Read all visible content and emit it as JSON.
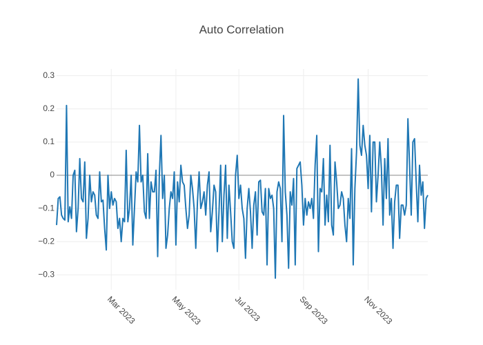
{
  "chart_data": {
    "type": "line",
    "title": "Auto Correlation",
    "color": "#1f77b4",
    "grid": true,
    "zeroline": true,
    "ylim": [
      -0.345,
      0.32
    ],
    "yticks": [
      {
        "value": -0.3,
        "label": "−0.3"
      },
      {
        "value": -0.2,
        "label": "−0.2"
      },
      {
        "value": -0.1,
        "label": "−0.1"
      },
      0,
      0.1,
      0.2,
      0.3
    ],
    "categories": [
      null,
      null,
      null,
      null,
      null,
      null,
      null,
      null,
      null,
      null,
      null,
      null,
      null,
      null,
      null,
      null,
      null,
      null,
      null,
      null,
      null,
      null,
      null,
      null,
      null,
      null,
      null,
      null,
      null,
      null,
      null,
      null,
      null,
      "Mar 2023",
      null,
      null,
      null,
      null,
      null,
      null,
      null,
      null,
      null,
      null,
      null,
      null,
      null,
      null,
      null,
      null,
      null,
      null,
      null,
      null,
      null,
      null,
      null,
      null,
      null,
      null,
      null,
      null,
      null,
      null,
      null,
      null,
      null,
      null,
      null,
      null,
      null,
      null,
      "May 2023",
      null,
      null,
      null,
      null,
      null,
      null,
      null,
      null,
      null,
      null,
      null,
      null,
      null,
      null,
      null,
      null,
      null,
      null,
      null,
      null,
      null,
      null,
      null,
      null,
      null,
      null,
      null,
      null,
      null,
      null,
      null,
      null,
      null,
      null,
      null,
      null,
      null,
      "Jul 2023",
      null,
      null,
      null,
      null,
      null,
      null,
      null,
      null,
      null,
      null,
      null,
      null,
      null,
      null,
      null,
      null,
      null,
      null,
      null,
      null,
      null,
      null,
      null,
      null,
      null,
      null,
      null,
      null,
      null,
      null,
      null,
      null,
      null,
      null,
      null,
      null,
      null,
      null,
      "Sep 2023",
      null,
      null,
      null,
      null,
      null,
      null,
      null,
      null,
      null,
      null,
      null,
      null,
      null,
      null,
      null,
      null,
      null,
      null,
      null,
      null,
      null,
      null,
      null,
      null,
      null,
      null,
      null,
      null,
      null,
      null,
      null,
      null,
      null,
      null,
      null,
      null,
      null,
      null,
      "Nov 2023",
      null,
      null,
      null,
      null,
      null,
      null,
      null,
      null,
      null,
      null,
      null,
      null,
      null,
      null,
      null,
      null,
      null,
      null,
      null,
      null,
      null,
      null,
      null,
      null,
      null,
      null,
      null,
      null,
      null,
      null,
      null,
      null,
      null,
      null,
      null,
      null
    ],
    "values": [
      -0.15,
      -0.07,
      -0.065,
      -0.12,
      -0.13,
      -0.135,
      0.21,
      -0.14,
      -0.095,
      -0.13,
      0.0,
      0.015,
      -0.17,
      -0.1,
      0.05,
      -0.07,
      -0.08,
      0.04,
      -0.19,
      -0.13,
      0.0,
      -0.08,
      -0.05,
      -0.06,
      -0.12,
      -0.13,
      0.01,
      -0.08,
      -0.075,
      -0.16,
      -0.225,
      0.0,
      -0.1,
      -0.05,
      -0.09,
      -0.07,
      -0.08,
      -0.16,
      -0.13,
      -0.2,
      -0.13,
      -0.14,
      0.075,
      -0.14,
      -0.1,
      0.0,
      -0.21,
      -0.1,
      0.01,
      -0.02,
      0.15,
      -0.02,
      0.0,
      -0.11,
      -0.13,
      0.065,
      -0.13,
      -0.02,
      -0.05,
      -0.05,
      0.015,
      -0.245,
      0.0,
      0.12,
      -0.07,
      0.0,
      -0.22,
      -0.18,
      -0.1,
      -0.05,
      -0.07,
      0.01,
      -0.21,
      -0.02,
      -0.08,
      0.03,
      -0.02,
      -0.03,
      -0.1,
      -0.16,
      -0.12,
      0.0,
      -0.04,
      -0.1,
      -0.22,
      -0.08,
      0.01,
      -0.1,
      -0.08,
      -0.05,
      -0.12,
      -0.03,
      0.01,
      -0.17,
      -0.11,
      -0.03,
      -0.05,
      -0.23,
      -0.11,
      0.03,
      -0.2,
      -0.06,
      0.03,
      -0.19,
      -0.03,
      -0.11,
      -0.2,
      -0.22,
      0.0,
      0.06,
      -0.07,
      -0.03,
      -0.1,
      -0.13,
      -0.25,
      -0.1,
      -0.04,
      -0.11,
      -0.22,
      -0.09,
      -0.05,
      -0.18,
      -0.02,
      -0.015,
      -0.11,
      -0.12,
      -0.04,
      -0.27,
      -0.04,
      -0.07,
      -0.06,
      -0.1,
      -0.31,
      -0.05,
      -0.02,
      -0.04,
      -0.2,
      0.18,
      -0.05,
      -0.12,
      -0.28,
      -0.05,
      -0.09,
      -0.01,
      -0.27,
      0.02,
      0.03,
      0.04,
      -0.03,
      -0.15,
      -0.07,
      -0.12,
      -0.08,
      -0.1,
      -0.07,
      -0.13,
      0.03,
      0.12,
      -0.23,
      -0.04,
      -0.05,
      0.05,
      -0.15,
      -0.06,
      -0.14,
      0.09,
      -0.15,
      -0.18,
      0.04,
      -0.02,
      -0.1,
      -0.09,
      -0.05,
      -0.07,
      -0.15,
      -0.2,
      -0.07,
      -0.13,
      0.08,
      -0.27,
      -0.04,
      0.07,
      0.29,
      0.09,
      0.06,
      0.15,
      0.09,
      0.06,
      -0.04,
      0.12,
      -0.11,
      0.1,
      0.1,
      -0.08,
      0.0,
      0.1,
      0.02,
      -0.15,
      0.05,
      -0.07,
      0.11,
      -0.12,
      -0.07,
      -0.22,
      -0.08,
      -0.03,
      -0.03,
      -0.19,
      -0.09,
      -0.09,
      -0.12,
      -0.09,
      0.17,
      0.03,
      -0.12,
      0.1,
      0.11,
      -0.02,
      -0.14,
      0.03,
      -0.06,
      -0.02,
      -0.16,
      -0.07,
      -0.06
    ]
  }
}
